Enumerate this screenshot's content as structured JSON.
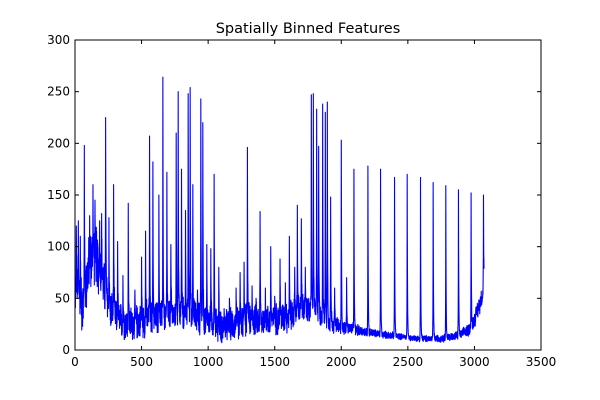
{
  "chart_data": {
    "type": "line",
    "title": "Spatially Binned Features",
    "xlabel": "",
    "ylabel": "",
    "xlim": [
      0,
      3500
    ],
    "ylim": [
      0,
      300
    ],
    "x_ticks": [
      0,
      500,
      1000,
      1500,
      2000,
      2500,
      3000,
      3500
    ],
    "y_ticks": [
      0,
      50,
      100,
      150,
      200,
      250,
      300
    ],
    "x_tick_labels": [
      "0",
      "500",
      "1000",
      "1500",
      "2000",
      "2500",
      "3000",
      "3500"
    ],
    "y_tick_labels": [
      "0",
      "50",
      "100",
      "150",
      "200",
      "250",
      "300"
    ],
    "grid": false,
    "series": [
      {
        "color": "#0000ff",
        "x_start": 0,
        "x_end": 3072,
        "baseline": [
          [
            0,
            60
          ],
          [
            30,
            55
          ],
          [
            60,
            40
          ],
          [
            100,
            80
          ],
          [
            150,
            95
          ],
          [
            200,
            70
          ],
          [
            260,
            40
          ],
          [
            320,
            30
          ],
          [
            400,
            25
          ],
          [
            500,
            28
          ],
          [
            600,
            32
          ],
          [
            700,
            33
          ],
          [
            800,
            35
          ],
          [
            900,
            32
          ],
          [
            1000,
            28
          ],
          [
            1100,
            22
          ],
          [
            1200,
            25
          ],
          [
            1300,
            30
          ],
          [
            1400,
            28
          ],
          [
            1500,
            30
          ],
          [
            1600,
            32
          ],
          [
            1700,
            40
          ],
          [
            1800,
            38
          ],
          [
            1900,
            28
          ],
          [
            2000,
            22
          ],
          [
            2100,
            20
          ],
          [
            2200,
            17
          ],
          [
            2300,
            15
          ],
          [
            2400,
            14
          ],
          [
            2500,
            12
          ],
          [
            2600,
            11
          ],
          [
            2700,
            11
          ],
          [
            2800,
            12
          ],
          [
            2900,
            15
          ],
          [
            2980,
            22
          ],
          [
            3040,
            45
          ],
          [
            3072,
            60
          ]
        ],
        "noise_amplitude": [
          [
            0,
            30
          ],
          [
            150,
            35
          ],
          [
            300,
            20
          ],
          [
            1000,
            18
          ],
          [
            1600,
            18
          ],
          [
            1900,
            12
          ],
          [
            2000,
            8
          ],
          [
            2200,
            5
          ],
          [
            2500,
            3
          ],
          [
            2900,
            5
          ],
          [
            3072,
            12
          ]
        ],
        "peaks": [
          [
            10,
            120
          ],
          [
            25,
            125
          ],
          [
            40,
            110
          ],
          [
            70,
            198
          ],
          [
            110,
            130
          ],
          [
            135,
            160
          ],
          [
            150,
            145
          ],
          [
            185,
            125
          ],
          [
            200,
            132
          ],
          [
            230,
            225
          ],
          [
            255,
            128
          ],
          [
            290,
            160
          ],
          [
            320,
            105
          ],
          [
            360,
            72
          ],
          [
            400,
            142
          ],
          [
            450,
            58
          ],
          [
            500,
            90
          ],
          [
            530,
            115
          ],
          [
            560,
            207
          ],
          [
            585,
            182
          ],
          [
            630,
            150
          ],
          [
            660,
            264
          ],
          [
            690,
            172
          ],
          [
            720,
            102
          ],
          [
            760,
            210
          ],
          [
            775,
            250
          ],
          [
            800,
            175
          ],
          [
            830,
            135
          ],
          [
            850,
            248
          ],
          [
            865,
            254
          ],
          [
            885,
            160
          ],
          [
            920,
            58
          ],
          [
            945,
            243
          ],
          [
            960,
            220
          ],
          [
            990,
            102
          ],
          [
            1020,
            98
          ],
          [
            1045,
            170
          ],
          [
            1080,
            80
          ],
          [
            1120,
            40
          ],
          [
            1160,
            50
          ],
          [
            1210,
            60
          ],
          [
            1240,
            75
          ],
          [
            1270,
            85
          ],
          [
            1295,
            196
          ],
          [
            1330,
            62
          ],
          [
            1360,
            50
          ],
          [
            1390,
            134
          ],
          [
            1430,
            60
          ],
          [
            1470,
            100
          ],
          [
            1500,
            52
          ],
          [
            1540,
            88
          ],
          [
            1580,
            65
          ],
          [
            1610,
            110
          ],
          [
            1650,
            80
          ],
          [
            1670,
            140
          ],
          [
            1700,
            127
          ],
          [
            1730,
            80
          ],
          [
            1775,
            247
          ],
          [
            1790,
            248
          ],
          [
            1815,
            233
          ],
          [
            1830,
            197
          ],
          [
            1860,
            238
          ],
          [
            1880,
            230
          ],
          [
            1895,
            240
          ],
          [
            1920,
            148
          ],
          [
            1950,
            60
          ],
          [
            2000,
            203
          ],
          [
            2040,
            70
          ],
          [
            2095,
            175
          ],
          [
            2200,
            178
          ],
          [
            2295,
            175
          ],
          [
            2400,
            167
          ],
          [
            2495,
            170
          ],
          [
            2595,
            167
          ],
          [
            2690,
            162
          ],
          [
            2785,
            159
          ],
          [
            2880,
            155
          ],
          [
            2975,
            152
          ],
          [
            3068,
            150
          ]
        ]
      }
    ]
  }
}
